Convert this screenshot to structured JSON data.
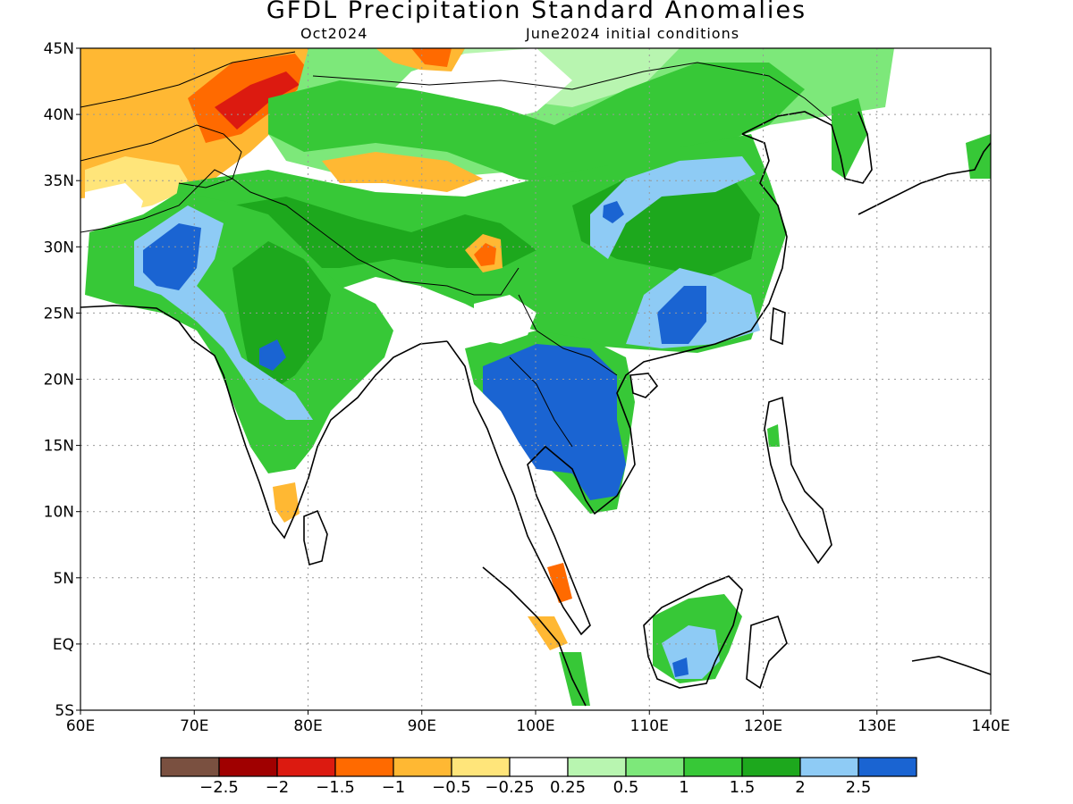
{
  "title": "GFDL Precipitation Standard Anomalies",
  "subtitle_left": "Oct2024",
  "subtitle_right": "June2024 initial conditions",
  "lat_ticks": [
    {
      "label": "45N",
      "value": 45
    },
    {
      "label": "40N",
      "value": 40
    },
    {
      "label": "35N",
      "value": 35
    },
    {
      "label": "30N",
      "value": 30
    },
    {
      "label": "25N",
      "value": 25
    },
    {
      "label": "20N",
      "value": 20
    },
    {
      "label": "15N",
      "value": 15
    },
    {
      "label": "10N",
      "value": 10
    },
    {
      "label": "5N",
      "value": 5
    },
    {
      "label": "EQ",
      "value": 0
    },
    {
      "label": "5S",
      "value": -5
    }
  ],
  "lon_ticks": [
    {
      "label": "60E",
      "value": 60
    },
    {
      "label": "70E",
      "value": 70
    },
    {
      "label": "80E",
      "value": 80
    },
    {
      "label": "90E",
      "value": 90
    },
    {
      "label": "100E",
      "value": 100
    },
    {
      "label": "110E",
      "value": 110
    },
    {
      "label": "120E",
      "value": 120
    },
    {
      "label": "130E",
      "value": 130
    },
    {
      "label": "140E",
      "value": 140
    }
  ],
  "colorbar": {
    "colors": [
      "#7a5040",
      "#a00000",
      "#dc1a10",
      "#ff6a00",
      "#ffb833",
      "#ffe57a",
      "#ffffff",
      "#b8f5b0",
      "#7de87a",
      "#37c837",
      "#1da81d",
      "#8ecbf5",
      "#1a64d2"
    ],
    "labels": [
      "−2.5",
      "−2",
      "−1.5",
      "−1",
      "−0.5",
      "−0.25",
      "0.25",
      "0.5",
      "1",
      "1.5",
      "2",
      "2.5"
    ]
  },
  "anomaly_regions": [
    {
      "name": "mongolia-north-china",
      "level": 1.0,
      "lon": [
        85,
        118
      ],
      "lat": [
        36,
        45
      ]
    },
    {
      "name": "kazakhstan-xinjiang",
      "level": -1.0,
      "lon": [
        60,
        82
      ],
      "lat": [
        36,
        45
      ]
    },
    {
      "name": "tibetan-plateau",
      "level": 1.5,
      "lon": [
        78,
        118
      ],
      "lat": [
        27,
        36
      ]
    },
    {
      "name": "pakistan",
      "level": 2.5,
      "lon": [
        66,
        72
      ],
      "lat": [
        27,
        32
      ]
    },
    {
      "name": "india-west",
      "level": 2.0,
      "lon": [
        70,
        78
      ],
      "lat": [
        17,
        26
      ]
    },
    {
      "name": "india",
      "level": 1.5,
      "lon": [
        72,
        88
      ],
      "lat": [
        13,
        30
      ]
    },
    {
      "name": "indochina",
      "level": 2.5,
      "lon": [
        97,
        108
      ],
      "lat": [
        12,
        22
      ]
    },
    {
      "name": "south-china",
      "level": 2.0,
      "lon": [
        110,
        118
      ],
      "lat": [
        22,
        30
      ]
    },
    {
      "name": "borneo",
      "level": 1.5,
      "lon": [
        110,
        119
      ],
      "lat": [
        -3,
        4
      ]
    },
    {
      "name": "malay-peninsula",
      "level": -1.0,
      "lon": [
        98,
        104
      ],
      "lat": [
        1,
        6
      ]
    }
  ]
}
